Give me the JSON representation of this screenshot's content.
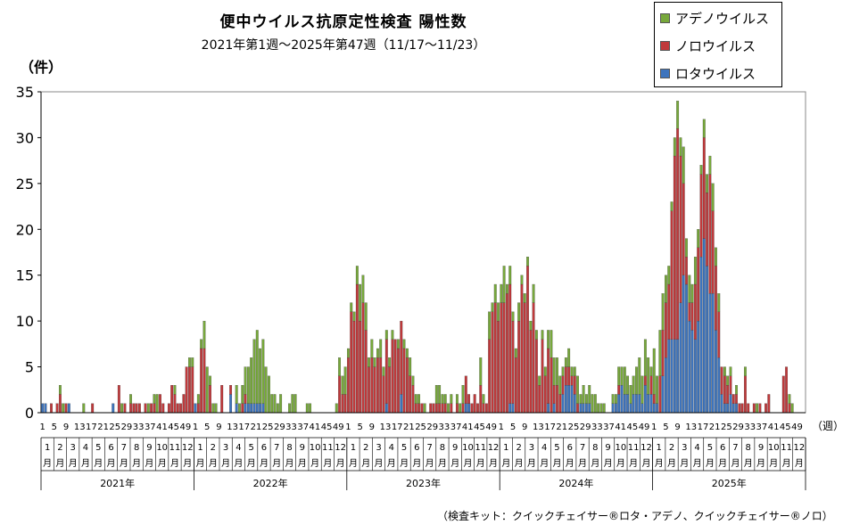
{
  "chart_data": {
    "type": "bar",
    "stacked": true,
    "title": "便中ウイルス抗原定性検査 陽性数",
    "subtitle": "2021年第1週～2025年第47週（11/17～11/23）",
    "ylabel": "（件）",
    "xlabel_unit": "（週）",
    "ylim": [
      0,
      35
    ],
    "yticks": [
      0,
      5,
      10,
      15,
      20,
      25,
      30,
      35
    ],
    "legend_position": "top-right",
    "series": [
      {
        "name": "アデノウイルス",
        "color": "#77a83b"
      },
      {
        "name": "ノロウイルス",
        "color": "#c0393b"
      },
      {
        "name": "ロタウイルス",
        "color": "#3d74bd"
      }
    ],
    "weeks_per_year": 52,
    "years": [
      {
        "label": "2021年",
        "week_ticks": [
          "1",
          "5",
          "9",
          "13",
          "17",
          "21",
          "25",
          "29",
          "33",
          "37",
          "41",
          "45",
          "49"
        ],
        "adeno": [
          0,
          0,
          0,
          0,
          0,
          0,
          1,
          1,
          0,
          0,
          0,
          0,
          0,
          0,
          1,
          0,
          0,
          0,
          0,
          0,
          0,
          0,
          0,
          0,
          0,
          0,
          0,
          1,
          0,
          0,
          1,
          0,
          0,
          0,
          0,
          0,
          1,
          0,
          1,
          2,
          0,
          0,
          0,
          0,
          0,
          1,
          0,
          0,
          0,
          0,
          1,
          1
        ],
        "noro": [
          0,
          0,
          0,
          1,
          0,
          1,
          2,
          0,
          1,
          0,
          0,
          0,
          0,
          0,
          0,
          0,
          0,
          1,
          0,
          0,
          0,
          0,
          0,
          0,
          0,
          0,
          3,
          0,
          1,
          0,
          1,
          1,
          1,
          1,
          0,
          1,
          0,
          1,
          1,
          0,
          2,
          1,
          0,
          1,
          3,
          2,
          1,
          1,
          2,
          5,
          5,
          5
        ],
        "rota": [
          1,
          1,
          0,
          0,
          0,
          0,
          0,
          0,
          0,
          1,
          0,
          0,
          0,
          0,
          0,
          0,
          0,
          0,
          0,
          0,
          0,
          0,
          0,
          0,
          1,
          0,
          0,
          0,
          0,
          0,
          0,
          0,
          0,
          0,
          0,
          0,
          0,
          0,
          0,
          0,
          0,
          0,
          0,
          0,
          0,
          0,
          0,
          0,
          0,
          0,
          0,
          0
        ]
      },
      {
        "label": "2022年",
        "week_ticks": [
          "1",
          "5",
          "9",
          "13",
          "17",
          "21",
          "25",
          "29",
          "33",
          "37",
          "41",
          "45",
          "49"
        ],
        "adeno": [
          0,
          1,
          1,
          3,
          5,
          1,
          1,
          1,
          0,
          0,
          0,
          0,
          0,
          0,
          2,
          1,
          2,
          3,
          4,
          5,
          7,
          8,
          6,
          7,
          5,
          4,
          2,
          2,
          1,
          2,
          0,
          0,
          1,
          2,
          2,
          0,
          0,
          0,
          1,
          1,
          0,
          0,
          0,
          0,
          0,
          0,
          0,
          0,
          1,
          2,
          2,
          3
        ],
        "noro": [
          0,
          1,
          7,
          7,
          0,
          3,
          0,
          0,
          0,
          3,
          0,
          0,
          1,
          0,
          0,
          0,
          1,
          1,
          0,
          0,
          0,
          0,
          0,
          0,
          0,
          0,
          0,
          0,
          0,
          0,
          0,
          0,
          0,
          0,
          0,
          0,
          0,
          0,
          0,
          0,
          0,
          0,
          0,
          0,
          0,
          0,
          0,
          0,
          0,
          4,
          2,
          2
        ],
        "rota": [
          1,
          0,
          0,
          0,
          0,
          0,
          0,
          0,
          0,
          0,
          0,
          0,
          2,
          0,
          1,
          0,
          0,
          1,
          1,
          1,
          1,
          1,
          1,
          1,
          0,
          0,
          0,
          0,
          0,
          0,
          0,
          0,
          0,
          0,
          0,
          0,
          0,
          0,
          0,
          0,
          0,
          0,
          0,
          0,
          0,
          0,
          0,
          0,
          0,
          0,
          0,
          0
        ]
      },
      {
        "label": "2023年",
        "week_ticks": [
          "1",
          "5",
          "9",
          "13",
          "17",
          "21",
          "25",
          "29",
          "33",
          "37",
          "41",
          "45",
          "49"
        ],
        "adeno": [
          1,
          1,
          1,
          2,
          4,
          3,
          3,
          1,
          2,
          1,
          1,
          2,
          1,
          1,
          1,
          1,
          0,
          1,
          0,
          1,
          1,
          2,
          1,
          1,
          1,
          0,
          1,
          0,
          0,
          0,
          2,
          2,
          1,
          1,
          1,
          1,
          0,
          1,
          1,
          2,
          0,
          0,
          0,
          0,
          0,
          3,
          1,
          0,
          3,
          1,
          2,
          2
        ],
        "noro": [
          6,
          11,
          10,
          14,
          10,
          12,
          9,
          5,
          6,
          5,
          6,
          6,
          4,
          7,
          5,
          8,
          8,
          7,
          8,
          7,
          6,
          4,
          3,
          1,
          1,
          1,
          0,
          0,
          1,
          1,
          1,
          1,
          1,
          1,
          0,
          1,
          0,
          1,
          0,
          1,
          3,
          1,
          1,
          2,
          1,
          3,
          1,
          1,
          8,
          11,
          12,
          10
        ],
        "rota": [
          0,
          0,
          0,
          0,
          0,
          0,
          0,
          0,
          0,
          0,
          0,
          0,
          0,
          1,
          0,
          0,
          0,
          0,
          2,
          0,
          0,
          0,
          0,
          0,
          0,
          0,
          0,
          0,
          0,
          0,
          0,
          0,
          0,
          0,
          0,
          0,
          0,
          0,
          0,
          0,
          1,
          1,
          0,
          0,
          0,
          0,
          0,
          0,
          0,
          0,
          0,
          0
        ]
      },
      {
        "label": "2024年",
        "week_ticks": [
          "1",
          "5",
          "9",
          "13",
          "17",
          "21",
          "25",
          "29",
          "33",
          "37",
          "41",
          "45",
          "49"
        ],
        "adeno": [
          2,
          4,
          1,
          2,
          1,
          1,
          2,
          1,
          1,
          1,
          1,
          2,
          1,
          1,
          1,
          1,
          2,
          3,
          3,
          3,
          2,
          1,
          1,
          2,
          1,
          1,
          3,
          1,
          2,
          1,
          2,
          2,
          2,
          1,
          1,
          1,
          0,
          0,
          1,
          1,
          2,
          2,
          3,
          2,
          2,
          2,
          3,
          4,
          3,
          4,
          4,
          1
        ],
        "noro": [
          12,
          12,
          13,
          13,
          9,
          6,
          10,
          14,
          12,
          16,
          9,
          12,
          8,
          3,
          8,
          4,
          6,
          6,
          2,
          3,
          2,
          2,
          2,
          2,
          1,
          2,
          1,
          0,
          0,
          0,
          0,
          0,
          0,
          0,
          0,
          0,
          0,
          0,
          0,
          0,
          1,
          0,
          0,
          0,
          0,
          0,
          0,
          0,
          0,
          1,
          0,
          2
        ],
        "rota": [
          0,
          0,
          0,
          1,
          1,
          0,
          0,
          0,
          0,
          0,
          0,
          0,
          0,
          0,
          0,
          0,
          1,
          0,
          1,
          0,
          0,
          2,
          3,
          3,
          3,
          2,
          0,
          1,
          1,
          1,
          1,
          0,
          0,
          0,
          0,
          0,
          0,
          0,
          1,
          1,
          2,
          3,
          2,
          2,
          1,
          2,
          2,
          2,
          1,
          3,
          2,
          2
        ]
      },
      {
        "label": "2025年",
        "week_ticks": [
          "1",
          "5",
          "9",
          "13",
          "17",
          "21",
          "25",
          "29",
          "33",
          "37",
          "41",
          "45",
          "49"
        ],
        "adeno": [
          5,
          3,
          5,
          4,
          3,
          2,
          1,
          2,
          3,
          2,
          4,
          2,
          3,
          2,
          3,
          2,
          1,
          2,
          2,
          2,
          3,
          2,
          2,
          0,
          1,
          1,
          1,
          0,
          1,
          0,
          0,
          1,
          0,
          0,
          0,
          1,
          0,
          0,
          0,
          0,
          0,
          0,
          0,
          0,
          0,
          0,
          1,
          1,
          0,
          0,
          0,
          0
        ],
        "noro": [
          1,
          0,
          4,
          5,
          6,
          6,
          14,
          20,
          23,
          16,
          10,
          3,
          2,
          3,
          6,
          8,
          9,
          11,
          8,
          13,
          9,
          7,
          5,
          3,
          3,
          2,
          2,
          1,
          1,
          1,
          1,
          4,
          1,
          0,
          1,
          0,
          1,
          0,
          1,
          2,
          0,
          0,
          0,
          0,
          4,
          5,
          1,
          0,
          0,
          0,
          0,
          0
        ],
        "rota": [
          1,
          1,
          0,
          4,
          6,
          8,
          8,
          8,
          8,
          12,
          15,
          14,
          10,
          9,
          8,
          10,
          17,
          19,
          16,
          13,
          13,
          9,
          6,
          2,
          1,
          1,
          2,
          1,
          1,
          0,
          0,
          0,
          0,
          0,
          0,
          0,
          0,
          0,
          0,
          0,
          0,
          0,
          0,
          0,
          0,
          0,
          0,
          0,
          0,
          0,
          0,
          0
        ]
      }
    ]
  },
  "source_note": "（検査キット：クイックチェイサー®ロタ・アデノ、クイックチェイサー®ノロ）"
}
